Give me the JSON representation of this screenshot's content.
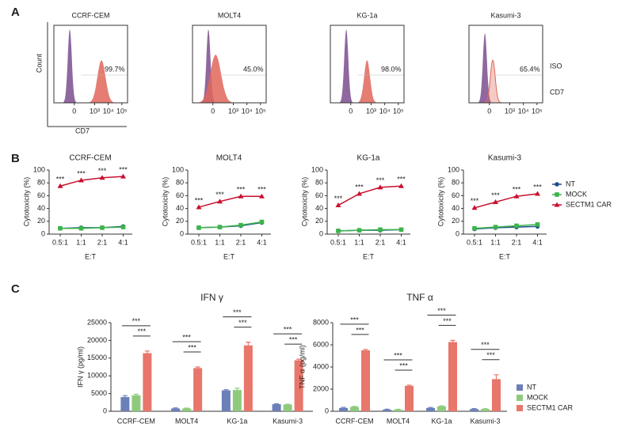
{
  "chart_data": [
    {
      "type": "flow",
      "panel": "A",
      "y_label": "Count",
      "x_label": "CD7",
      "xlim": [
        -1000,
        262144
      ],
      "xticks": [
        {
          "value": 0,
          "label": "0"
        },
        {
          "value": 1000,
          "label": "10³"
        },
        {
          "value": 10000,
          "label": "10⁴"
        },
        {
          "value": 100000,
          "label": "10⁵"
        }
      ],
      "legend": [
        "ISO",
        "CD7"
      ],
      "colors": [
        "#7b4d8e",
        "#e0665a"
      ],
      "plots": [
        {
          "title": "CCRF-CEM",
          "values": [
            99.7
          ],
          "value_labels": [
            "99.7%"
          ]
        },
        {
          "title": "MOLT4",
          "values": [
            45.0
          ],
          "value_labels": [
            "45.0%"
          ]
        },
        {
          "title": "KG-1a",
          "values": [
            98.0
          ],
          "value_labels": [
            "98.0%"
          ]
        },
        {
          "title": "Kasumi-3",
          "values": [
            65.4
          ],
          "value_labels": [
            "65.4%"
          ]
        }
      ]
    },
    {
      "type": "line",
      "panel": "B",
      "x_label": "E:T",
      "y_label": "Cytotoxicity (%)",
      "categories": [
        "0.5:1",
        "1:1",
        "2:1",
        "4:1"
      ],
      "ylim": [
        0,
        100
      ],
      "yticks": [
        0,
        20,
        40,
        60,
        80,
        100
      ],
      "plots": [
        {
          "title": "CCRF-CEM",
          "annotations": [
            "***",
            "***",
            "***",
            "***"
          ],
          "series": [
            {
              "name": "NT",
              "color": "#1f4e8c",
              "values": [
                9,
                10,
                10,
                12
              ]
            },
            {
              "name": "MOCK",
              "color": "#3cb44b",
              "values": [
                9,
                9,
                10,
                11
              ]
            },
            {
              "name": "SECTM1 CAR",
              "color": "#c8102e",
              "values": [
                75,
                84,
                88,
                90
              ]
            }
          ]
        },
        {
          "title": "MOLT4",
          "annotations": [
            "***",
            "***",
            "***",
            "***"
          ],
          "series": [
            {
              "name": "NT",
              "color": "#1f4e8c",
              "values": [
                10,
                11,
                13,
                18
              ]
            },
            {
              "name": "MOCK",
              "color": "#3cb44b",
              "values": [
                10,
                11,
                14,
                19
              ]
            },
            {
              "name": "SECTM1 CAR",
              "color": "#c8102e",
              "values": [
                42,
                51,
                59,
                59
              ]
            }
          ]
        },
        {
          "title": "KG-1a",
          "annotations": [
            "***",
            "***",
            "***",
            "***"
          ],
          "series": [
            {
              "name": "NT",
              "color": "#1f4e8c",
              "values": [
                5,
                6,
                6,
                7
              ]
            },
            {
              "name": "MOCK",
              "color": "#3cb44b",
              "values": [
                5,
                6,
                7,
                7
              ]
            },
            {
              "name": "SECTM1 CAR",
              "color": "#c8102e",
              "values": [
                45,
                63,
                73,
                75
              ]
            }
          ]
        },
        {
          "title": "Kasumi-3",
          "annotations": [
            "***",
            "***",
            "***",
            "***"
          ],
          "series": [
            {
              "name": "NT",
              "color": "#1f4e8c",
              "values": [
                8,
                10,
                11,
                12
              ]
            },
            {
              "name": "MOCK",
              "color": "#3cb44b",
              "values": [
                9,
                11,
                13,
                15
              ]
            },
            {
              "name": "SECTM1 CAR",
              "color": "#c8102e",
              "values": [
                41,
                50,
                59,
                63
              ]
            }
          ]
        }
      ]
    },
    {
      "type": "bar",
      "panel": "C",
      "categories": [
        "CCRF-CEM",
        "MOLT4",
        "KG-1a",
        "Kasumi-3"
      ],
      "plots": [
        {
          "title": "IFN γ",
          "y_label": "IFN γ (pg/ml)",
          "ylim": [
            0,
            25000
          ],
          "yticks": [
            0,
            5000,
            10000,
            15000,
            20000,
            25000
          ],
          "annotations": [
            "***",
            "***",
            "***",
            "***",
            "***",
            "***",
            "***",
            "***"
          ],
          "series": [
            {
              "name": "NT",
              "color": "#6b7fb8",
              "values": [
                4000,
                800,
                5900,
                2000
              ],
              "errors": [
                400,
                150,
                200,
                100
              ]
            },
            {
              "name": "MOCK",
              "color": "#8fca7c",
              "values": [
                4500,
                800,
                6000,
                1900
              ],
              "errors": [
                300,
                100,
                500,
                100
              ]
            },
            {
              "name": "SECTM1 CAR",
              "color": "#e8766a",
              "values": [
                16400,
                12200,
                18600,
                14400
              ],
              "errors": [
                600,
                300,
                900,
                300
              ]
            }
          ]
        },
        {
          "title": "TNF α",
          "y_label": "TNF α (pg/ml)",
          "ylim": [
            0,
            8000
          ],
          "yticks": [
            0,
            2000,
            4000,
            6000,
            8000
          ],
          "annotations": [
            "***",
            "***",
            "***",
            "***",
            "***",
            "***",
            "***",
            "***"
          ],
          "series": [
            {
              "name": "NT",
              "color": "#6b7fb8",
              "values": [
                300,
                150,
                300,
                200
              ],
              "errors": [
                50,
                40,
                40,
                40
              ]
            },
            {
              "name": "MOCK",
              "color": "#8fca7c",
              "values": [
                400,
                150,
                450,
                200
              ],
              "errors": [
                40,
                30,
                40,
                30
              ]
            },
            {
              "name": "SECTM1 CAR",
              "color": "#e8766a",
              "values": [
                5500,
                2300,
                6250,
                2900
              ],
              "errors": [
                80,
                60,
                150,
                400
              ]
            }
          ]
        }
      ]
    }
  ]
}
